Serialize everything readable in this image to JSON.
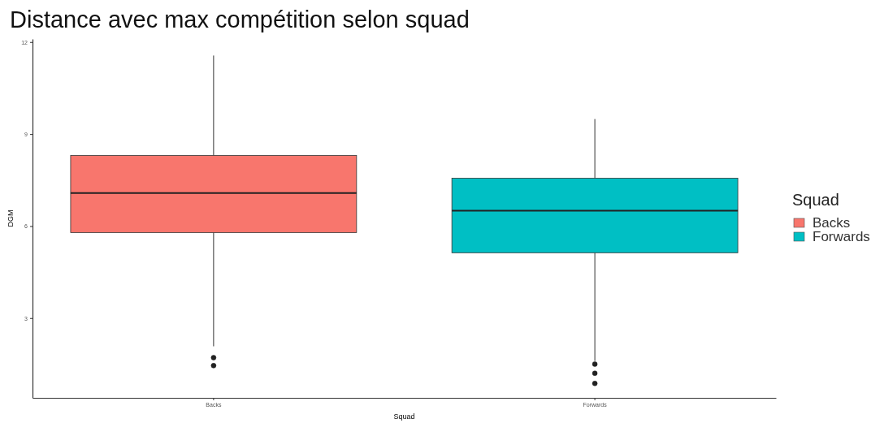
{
  "chart_data": {
    "type": "box",
    "title": "Distance avec max compétition selon squad",
    "xlabel": "Squad",
    "ylabel": "DGM",
    "legend_title": "Squad",
    "legend": "right",
    "grid": false,
    "categories": [
      "Backs",
      "Forwards"
    ],
    "ylim": [
      0.4,
      12.1
    ],
    "yticks": [
      3,
      6,
      9,
      12
    ],
    "series": [
      {
        "name": "Backs",
        "color": "#f8766d",
        "boxes": [
          {
            "low": 2.08,
            "q1": 5.79,
            "median": 7.08,
            "q3": 8.3,
            "high": 11.56,
            "outliers": [
              1.71,
              1.45
            ]
          },
          null
        ]
      },
      {
        "name": "Forwards",
        "color": "#00bfc4",
        "boxes": [
          null,
          {
            "low": 1.6,
            "q1": 5.13,
            "median": 6.5,
            "q3": 7.56,
            "high": 9.49,
            "outliers": [
              1.5,
              1.2,
              0.87
            ]
          }
        ]
      }
    ]
  }
}
